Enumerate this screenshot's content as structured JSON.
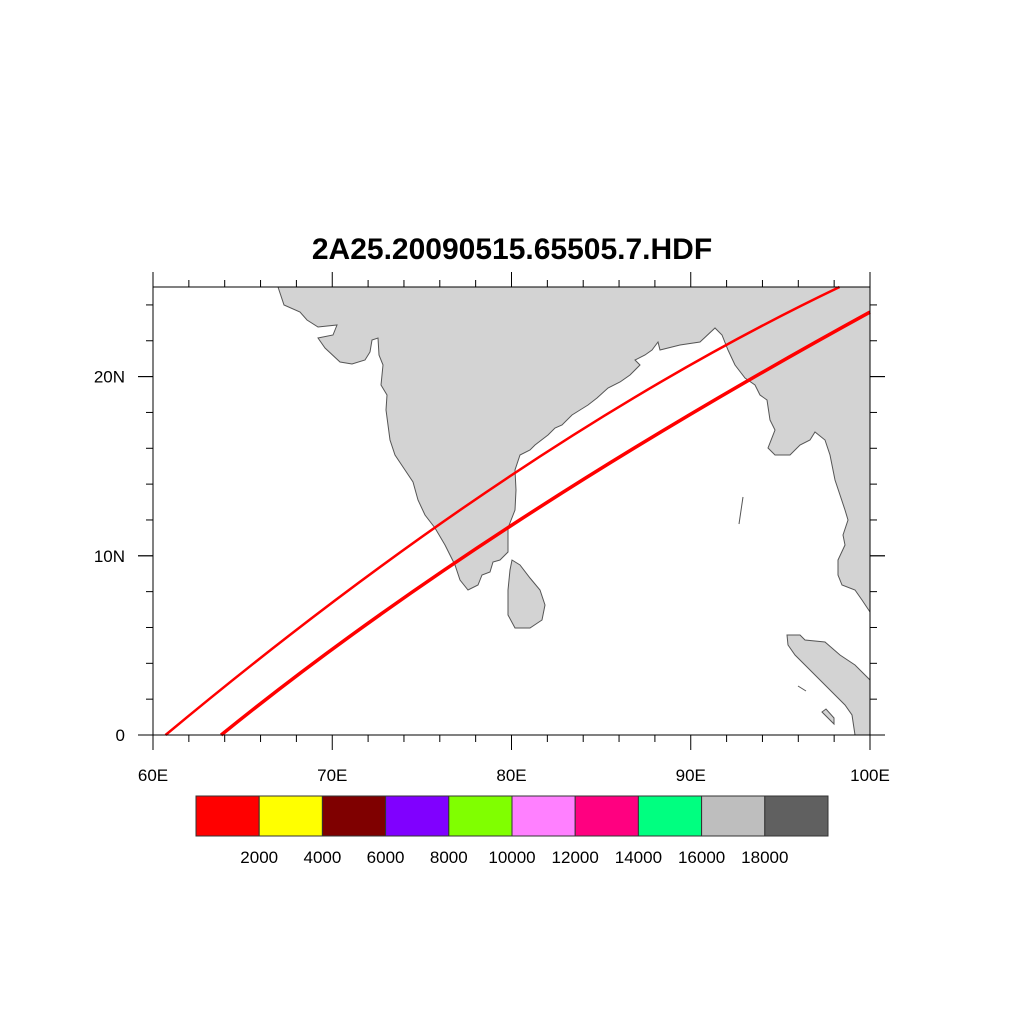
{
  "title": "2A25.20090515.65505.7.HDF",
  "chart_data": {
    "type": "map",
    "title": "2A25.20090515.65505.7.HDF",
    "lon_range": [
      60,
      100
    ],
    "lat_range": [
      0,
      25
    ],
    "x_ticks": [
      {
        "value": 60,
        "label": "60E"
      },
      {
        "value": 70,
        "label": "70E"
      },
      {
        "value": 80,
        "label": "80E"
      },
      {
        "value": 90,
        "label": "90E"
      },
      {
        "value": 100,
        "label": "100E"
      }
    ],
    "y_ticks": [
      {
        "value": 0,
        "label": "0"
      },
      {
        "value": 10,
        "label": "10N"
      },
      {
        "value": 20,
        "label": "20N"
      }
    ],
    "land_color": "#d3d3d3",
    "swath_color": "#ff0000",
    "swath_edges": [
      {
        "name": "left-edge",
        "points": [
          [
            60.7,
            0
          ],
          [
            80,
            14.5
          ],
          [
            98.3,
            25
          ]
        ]
      },
      {
        "name": "right-edge",
        "points": [
          [
            63.8,
            0
          ],
          [
            80,
            11.7
          ],
          [
            100,
            23.6
          ]
        ]
      }
    ],
    "colorbar": {
      "labels": [
        "2000",
        "4000",
        "6000",
        "8000",
        "10000",
        "12000",
        "14000",
        "16000",
        "18000"
      ],
      "colors": [
        "#ff0000",
        "#ffff00",
        "#7f0000",
        "#8000ff",
        "#80ff00",
        "#ff80ff",
        "#ff0080",
        "#00ff80",
        "#bebebe",
        "#606060"
      ]
    }
  }
}
